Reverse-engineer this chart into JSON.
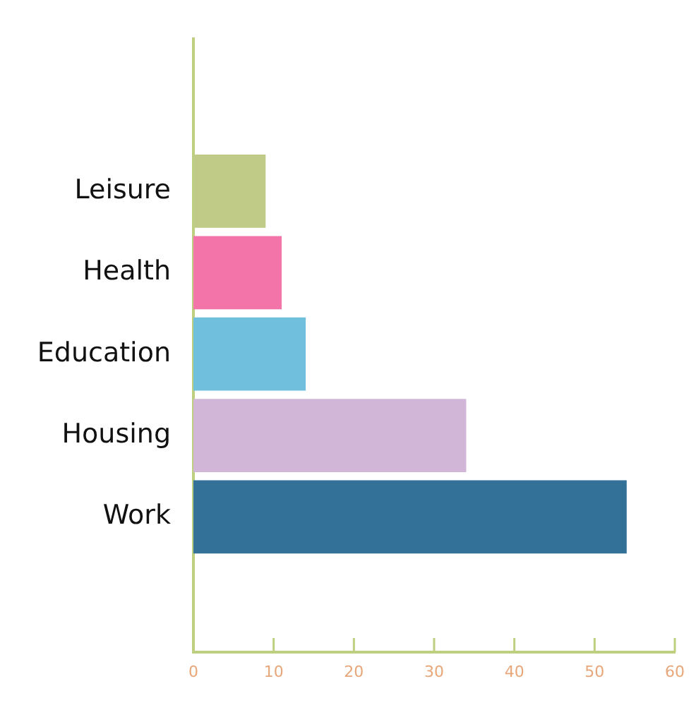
{
  "chart_data": {
    "type": "bar",
    "orientation": "horizontal",
    "categories": [
      "Leisure",
      "Health",
      "Education",
      "Housing",
      "Work"
    ],
    "values": [
      9,
      11,
      14,
      34,
      54
    ],
    "colors": [
      "#bfcb87",
      "#f274a8",
      "#70c0dd",
      "#d2b6d7",
      "#337199"
    ],
    "xlim": [
      0,
      60
    ],
    "xticks": [
      0,
      10,
      20,
      30,
      40,
      50,
      60
    ]
  }
}
